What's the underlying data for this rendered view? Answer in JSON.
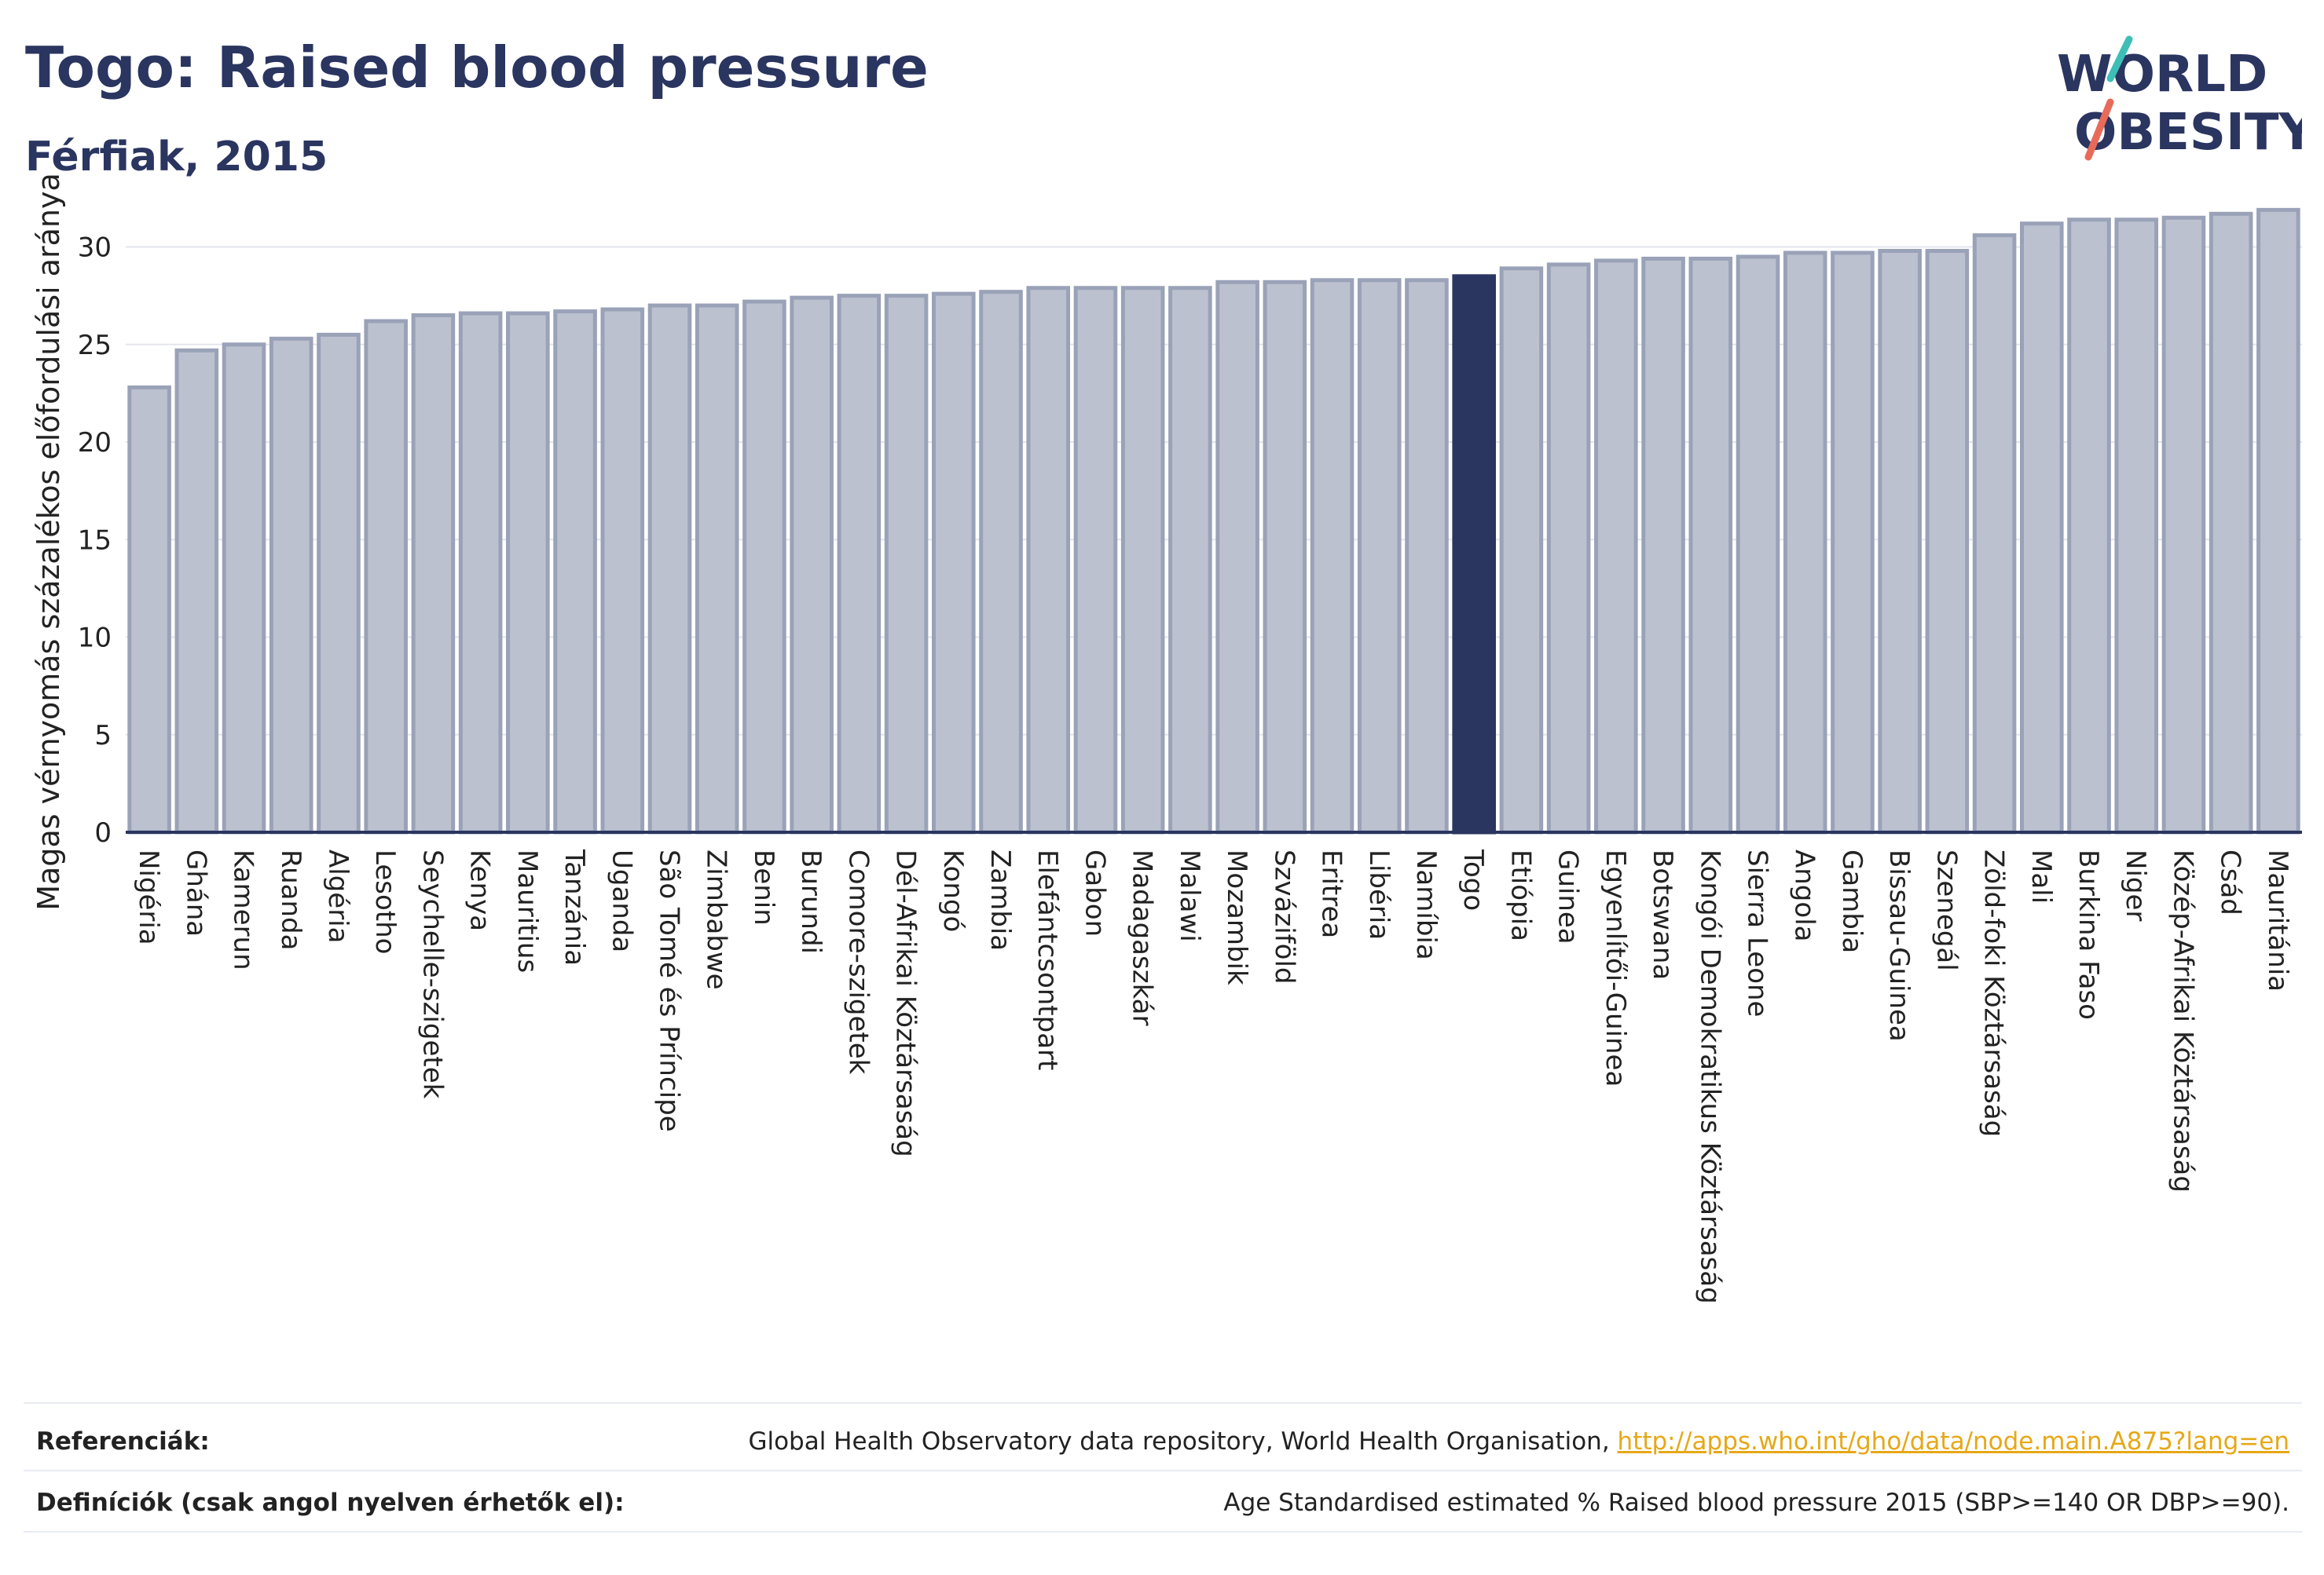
{
  "header": {
    "title": "Togo: Raised blood pressure",
    "subtitle": "Férfiak, 2015"
  },
  "logo": {
    "line1": "WORLD",
    "line2": "OBESITY"
  },
  "colors": {
    "bar": "#bcc1d0",
    "bar_border": "#9aa2b8",
    "highlight": "#2a3560",
    "axis": "#2a3560",
    "grid": "#e3e5ec",
    "link": "#e6a817"
  },
  "chart_data": {
    "type": "bar",
    "title": "Togo: Raised blood pressure",
    "subtitle": "Férfiak, 2015",
    "xlabel": "",
    "ylabel": "Magas vérnyomás százalékos előfordulási aránya",
    "ylim": [
      0,
      33
    ],
    "yticks": [
      0,
      5,
      10,
      15,
      20,
      25,
      30
    ],
    "grid": true,
    "highlight": "Togo",
    "categories": [
      "Nigéria",
      "Ghána",
      "Kamerun",
      "Ruanda",
      "Algéria",
      "Lesotho",
      "Seychelle-szigetek",
      "Kenya",
      "Mauritius",
      "Tanzánia",
      "Uganda",
      "São Tomé és Príncipe",
      "Zimbabwe",
      "Benin",
      "Burundi",
      "Comore-szigetek",
      "Dél-Afrikai Köztársaság",
      "Kongó",
      "Zambia",
      "Elefántcsontpart",
      "Gabon",
      "Madagaszkár",
      "Malawi",
      "Mozambik",
      "Szváziföld",
      "Eritrea",
      "Libéria",
      "Namíbia",
      "Togo",
      "Etiópia",
      "Guinea",
      "Egyenlítői-Guinea",
      "Botswana",
      "Kongói Demokratikus Köztársaság",
      "Sierra Leone",
      "Angola",
      "Gambia",
      "Bissau-Guinea",
      "Szenegál",
      "Zöld-foki Köztársaság",
      "Mali",
      "Burkina Faso",
      "Niger",
      "Közép-Afrikai Köztársaság",
      "Csád",
      "Mauritánia"
    ],
    "values": [
      22.8,
      24.7,
      25.0,
      25.3,
      25.5,
      26.2,
      26.5,
      26.6,
      26.6,
      26.7,
      26.8,
      27.0,
      27.0,
      27.2,
      27.4,
      27.5,
      27.5,
      27.6,
      27.7,
      27.9,
      27.9,
      27.9,
      27.9,
      28.2,
      28.2,
      28.3,
      28.3,
      28.3,
      28.5,
      28.9,
      29.1,
      29.3,
      29.4,
      29.4,
      29.5,
      29.7,
      29.7,
      29.8,
      29.8,
      30.6,
      31.2,
      31.4,
      31.4,
      31.5,
      31.7,
      31.9
    ]
  },
  "footer": {
    "references_label": "Referenciák:",
    "references_text": "Global Health Observatory data repository, World Health Organisation, ",
    "references_link": "http://apps.who.int/gho/data/node.main.A875?lang=en",
    "definitions_label": "Definíciók (csak angol nyelven érhetők el):",
    "definitions_text": "Age Standardised estimated % Raised blood pressure 2015 (SBP>=140 OR DBP>=90)."
  }
}
